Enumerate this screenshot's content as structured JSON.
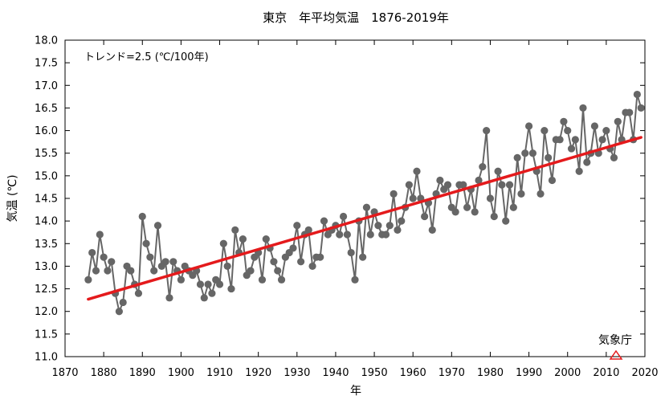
{
  "chart_data": {
    "type": "line",
    "title": "東京　年平均気温　1876-2019年",
    "xlabel": "年",
    "ylabel": "気温 (℃)",
    "xlim": [
      1870,
      2020
    ],
    "ylim": [
      11.0,
      18.0
    ],
    "xticks": [
      "1870",
      "1880",
      "1890",
      "1900",
      "1910",
      "1920",
      "1930",
      "1940",
      "1950",
      "1960",
      "1970",
      "1980",
      "1990",
      "2000",
      "2010",
      "2020"
    ],
    "yticks": [
      "11.0",
      "11.5",
      "12.0",
      "12.5",
      "13.0",
      "13.5",
      "14.0",
      "14.5",
      "15.0",
      "15.5",
      "16.0",
      "16.5",
      "17.0",
      "17.5",
      "18.0"
    ],
    "annotation": "トレンド=2.5 (℃/100年)",
    "logo": "気象庁",
    "colors": {
      "series": "#666666",
      "trend": "#e41a1c",
      "logo": "#e41a1c"
    },
    "series": [
      {
        "name": "年平均気温",
        "x": [
          1876,
          1877,
          1878,
          1879,
          1880,
          1881,
          1882,
          1883,
          1884,
          1885,
          1886,
          1887,
          1888,
          1889,
          1890,
          1891,
          1892,
          1893,
          1894,
          1895,
          1896,
          1897,
          1898,
          1899,
          1900,
          1901,
          1902,
          1903,
          1904,
          1905,
          1906,
          1907,
          1908,
          1909,
          1910,
          1911,
          1912,
          1913,
          1914,
          1915,
          1916,
          1917,
          1918,
          1919,
          1920,
          1921,
          1922,
          1923,
          1924,
          1925,
          1926,
          1927,
          1928,
          1929,
          1930,
          1931,
          1932,
          1933,
          1934,
          1935,
          1936,
          1937,
          1938,
          1939,
          1940,
          1941,
          1942,
          1943,
          1944,
          1945,
          1946,
          1947,
          1948,
          1949,
          1950,
          1951,
          1952,
          1953,
          1954,
          1955,
          1956,
          1957,
          1958,
          1959,
          1960,
          1961,
          1962,
          1963,
          1964,
          1965,
          1966,
          1967,
          1968,
          1969,
          1970,
          1971,
          1972,
          1973,
          1974,
          1975,
          1976,
          1977,
          1978,
          1979,
          1980,
          1981,
          1982,
          1983,
          1984,
          1985,
          1986,
          1987,
          1988,
          1989,
          1990,
          1991,
          1992,
          1993,
          1994,
          1995,
          1996,
          1997,
          1998,
          1999,
          2000,
          2001,
          2002,
          2003,
          2004,
          2005,
          2006,
          2007,
          2008,
          2009,
          2010,
          2011,
          2012,
          2013,
          2014,
          2015,
          2016,
          2017,
          2018,
          2019
        ],
        "values": [
          12.7,
          13.3,
          12.9,
          13.7,
          13.2,
          12.9,
          13.1,
          12.4,
          12.0,
          12.2,
          13.0,
          12.9,
          12.6,
          12.4,
          14.1,
          13.5,
          13.2,
          12.9,
          13.9,
          13.0,
          13.1,
          12.3,
          13.1,
          12.9,
          12.7,
          13.0,
          12.9,
          12.8,
          12.9,
          12.6,
          12.3,
          12.6,
          12.4,
          12.7,
          12.6,
          13.5,
          13.0,
          12.5,
          13.8,
          13.3,
          13.6,
          12.8,
          12.9,
          13.2,
          13.3,
          12.7,
          13.6,
          13.4,
          13.1,
          12.9,
          12.7,
          13.2,
          13.3,
          13.4,
          13.9,
          13.1,
          13.7,
          13.8,
          13.0,
          13.2,
          13.2,
          14.0,
          13.7,
          13.8,
          13.9,
          13.7,
          14.1,
          13.7,
          13.3,
          12.7,
          14.0,
          13.2,
          14.3,
          13.7,
          14.2,
          13.9,
          13.7,
          13.7,
          13.9,
          14.6,
          13.8,
          14.0,
          14.3,
          14.8,
          14.5,
          15.1,
          14.5,
          14.1,
          14.4,
          13.8,
          14.6,
          14.9,
          14.7,
          14.8,
          14.3,
          14.2,
          14.8,
          14.8,
          14.3,
          14.7,
          14.2,
          14.9,
          15.2,
          16.0,
          14.5,
          14.1,
          15.1,
          14.8,
          14.0,
          14.8,
          14.3,
          15.4,
          14.6,
          15.5,
          16.1,
          15.5,
          15.1,
          14.6,
          16.0,
          15.4,
          14.9,
          15.8,
          15.8,
          16.2,
          16.0,
          15.6,
          15.8,
          15.1,
          16.5,
          15.3,
          15.5,
          16.1,
          15.5,
          15.8,
          16.0,
          15.6,
          15.4,
          16.2,
          15.8,
          16.4,
          16.4,
          15.8,
          16.8,
          16.5
        ]
      }
    ],
    "trend": {
      "x": [
        1876,
        2019
      ],
      "values": [
        12.27,
        15.85
      ]
    }
  }
}
